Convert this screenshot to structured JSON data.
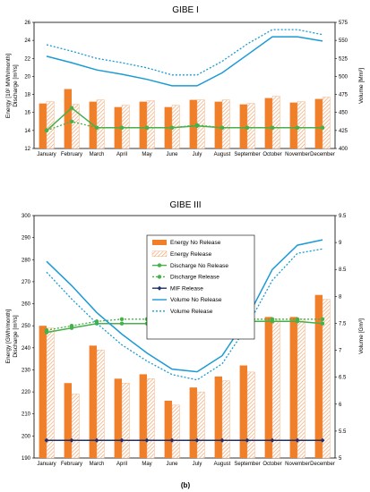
{
  "chart_data": [
    {
      "type": "bar",
      "title": "GIBE I",
      "ylabel": "Energy [10² MWh/month]\nDischarge [m³/s]",
      "ylabel2": "Volume [Mm³]",
      "categories": [
        "January",
        "February",
        "March",
        "April",
        "May",
        "June",
        "July",
        "August",
        "September",
        "October",
        "November",
        "December"
      ],
      "ylim": [
        12,
        26
      ],
      "ylim2": [
        400,
        575
      ],
      "yticks": [
        12,
        14,
        16,
        18,
        20,
        22,
        24,
        26
      ],
      "yticks2": [
        400,
        425,
        450,
        475,
        500,
        525,
        550,
        575
      ],
      "series": [
        {
          "name": "Energy No Release",
          "kind": "bar",
          "style": "solid",
          "color": "#f07f2a",
          "axis": "left",
          "values": [
            17.0,
            18.6,
            17.2,
            16.6,
            17.2,
            16.6,
            17.4,
            17.2,
            16.9,
            17.6,
            17.1,
            17.5
          ]
        },
        {
          "name": "Energy Release",
          "kind": "bar",
          "style": "hatched",
          "color": "#f3a46c",
          "axis": "left",
          "values": [
            17.2,
            16.9,
            17.4,
            16.8,
            17.3,
            16.8,
            17.4,
            17.4,
            17.0,
            17.8,
            17.2,
            17.7
          ]
        },
        {
          "name": "Discharge No Release",
          "kind": "line",
          "style": "solid",
          "color": "#46b04a",
          "axis": "left",
          "values": [
            14.0,
            16.5,
            14.3,
            14.3,
            14.3,
            14.3,
            14.5,
            14.3,
            14.3,
            14.3,
            14.3,
            14.3
          ]
        },
        {
          "name": "Discharge Release",
          "kind": "line",
          "style": "dotted",
          "color": "#46b04a",
          "axis": "left",
          "values": [
            14.0,
            15.0,
            14.3,
            14.3,
            14.3,
            14.3,
            14.6,
            14.3,
            14.3,
            14.3,
            14.3,
            14.3
          ]
        },
        {
          "name": "Volume No Release",
          "kind": "line",
          "style": "solid",
          "color": "#1b9ad6",
          "axis": "right",
          "values": [
            528,
            519,
            509,
            503,
            496,
            487,
            487,
            505,
            530,
            555,
            555,
            549
          ]
        },
        {
          "name": "Volume Release",
          "kind": "line",
          "style": "dotted",
          "color": "#1b9ad6",
          "axis": "right",
          "values": [
            544,
            535,
            525,
            519,
            512,
            502,
            502,
            521,
            545,
            565,
            565,
            558
          ]
        }
      ]
    },
    {
      "type": "bar",
      "title": "GIBE III",
      "ylabel": "Energy [GWh/month]\nDischarge [m³/s]",
      "ylabel2": "Volume [Gm³]",
      "categories": [
        "January",
        "February",
        "March",
        "April",
        "May",
        "June",
        "July",
        "August",
        "September",
        "October",
        "November",
        "December"
      ],
      "ylim": [
        190,
        300
      ],
      "ylim2": [
        5,
        9.5
      ],
      "yticks": [
        190,
        200,
        210,
        220,
        230,
        240,
        250,
        260,
        270,
        280,
        290,
        300
      ],
      "yticks2": [
        5,
        5.5,
        6,
        6.5,
        7,
        7.5,
        8,
        8.5,
        9,
        9.5
      ],
      "series": [
        {
          "name": "Energy No Release",
          "kind": "bar",
          "style": "solid",
          "color": "#f07f2a",
          "axis": "left",
          "values": [
            250,
            224,
            241,
            226,
            228,
            216,
            222,
            227,
            232,
            254,
            254,
            264
          ]
        },
        {
          "name": "Energy Release",
          "kind": "bar",
          "style": "hatched",
          "color": "#f3a46c",
          "axis": "left",
          "values": [
            249,
            219,
            239,
            224,
            226,
            214,
            220,
            225,
            229,
            253,
            253,
            262
          ]
        },
        {
          "name": "Discharge No Release",
          "kind": "line",
          "style": "solid",
          "color": "#46b04a",
          "axis": "left",
          "values": [
            247,
            249,
            251,
            251,
            251,
            251,
            251,
            251,
            252,
            252,
            252,
            251
          ]
        },
        {
          "name": "Discharge Release",
          "kind": "line",
          "style": "dotted",
          "color": "#46b04a",
          "axis": "left",
          "values": [
            248,
            250,
            252,
            253,
            253,
            253,
            253,
            253,
            253,
            253,
            253,
            253
          ]
        },
        {
          "name": "MIF Release",
          "kind": "line",
          "style": "solid",
          "color": "#1f2f6b",
          "axis": "left",
          "marker": "diamond",
          "values": [
            198,
            198,
            198,
            198,
            198,
            198,
            198,
            198,
            198,
            198,
            198,
            198
          ]
        },
        {
          "name": "Volume No Release",
          "kind": "line",
          "style": "solid",
          "color": "#1b9ad6",
          "axis": "right",
          "values": [
            8.65,
            8.2,
            7.7,
            7.3,
            6.95,
            6.65,
            6.6,
            6.9,
            7.6,
            8.5,
            8.95,
            9.05
          ]
        },
        {
          "name": "Volume Release",
          "kind": "line",
          "style": "dotted",
          "color": "#1b9ad6",
          "axis": "right",
          "values": [
            8.45,
            7.95,
            7.5,
            7.1,
            6.8,
            6.55,
            6.45,
            6.75,
            7.45,
            8.3,
            8.8,
            8.88
          ]
        }
      ],
      "legend": {
        "placement": "center-top"
      }
    }
  ],
  "figure_label": "(b)"
}
